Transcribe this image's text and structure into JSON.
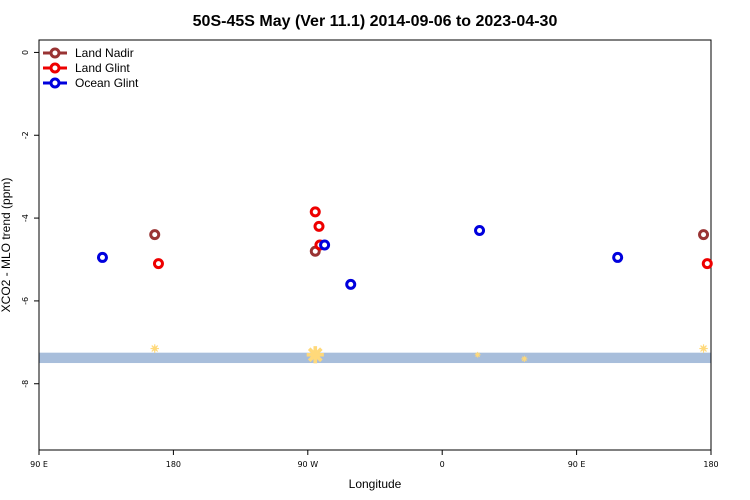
{
  "chart_data": {
    "type": "scatter",
    "title": "50S-45S May (Ver 11.1)   2014-09-06 to 2023-04-30",
    "xlabel": "Longitude",
    "ylabel": "XCO2 - MLO trend (ppm)",
    "xlim": [
      90,
      450
    ],
    "ylim": [
      -9.6,
      0.3
    ],
    "xticks": [
      {
        "value": 90,
        "label": "90 E"
      },
      {
        "value": 162,
        "label": "180"
      },
      {
        "value": 234,
        "label": "90 W"
      },
      {
        "value": 306,
        "label": "0"
      },
      {
        "value": 378,
        "label": "90 E"
      },
      {
        "value": 450,
        "label": "180"
      }
    ],
    "yticks": [
      0,
      -2,
      -4,
      -6,
      -8
    ],
    "legend_position": "top-left",
    "colors": {
      "land_nadir": "#993333",
      "land_glint": "#ee0000",
      "ocean_glint": "#0000dd",
      "band": "#a8bedb",
      "marker": "#ffd97a"
    },
    "series": [
      {
        "name": "Land Nadir",
        "color": "#993333",
        "points": [
          [
            152,
            -4.4
          ],
          [
            238,
            -4.8
          ],
          [
            446,
            -4.4
          ]
        ]
      },
      {
        "name": "Land Glint",
        "color": "#ee0000",
        "points": [
          [
            154,
            -5.1
          ],
          [
            238,
            -3.85
          ],
          [
            240,
            -4.2
          ],
          [
            240.5,
            -4.65
          ],
          [
            448,
            -5.1
          ]
        ]
      },
      {
        "name": "Ocean Glint",
        "color": "#0000dd",
        "points": [
          [
            124,
            -4.95
          ],
          [
            243,
            -4.65
          ],
          [
            257,
            -5.6
          ],
          [
            326,
            -4.3
          ],
          [
            400,
            -4.95
          ]
        ]
      }
    ],
    "band": {
      "ymin": -7.5,
      "ymax": -7.25
    },
    "band_markers": [
      {
        "x": 152,
        "y": -7.15,
        "size": 1
      },
      {
        "x": 238,
        "y": -7.3,
        "size": 3
      },
      {
        "x": 446,
        "y": -7.15,
        "size": 1
      },
      {
        "x": 350,
        "y": -7.4,
        "size": 0.5
      },
      {
        "x": 325,
        "y": -7.3,
        "size": 0.4
      }
    ]
  }
}
